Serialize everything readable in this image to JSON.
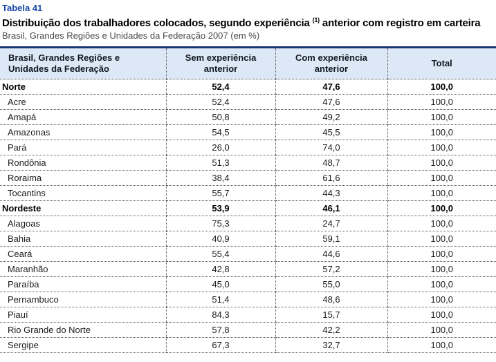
{
  "meta": {
    "table_label": "Tabela 41",
    "title_main": "Distribuição dos trabalhadores colocados, segundo experiência",
    "title_superscript": "(1)",
    "title_rest": " anterior com registro em carteira",
    "subtitle": "Brasil, Grandes Regiões e Unidades da Federação 2007 (em %)"
  },
  "colors": {
    "accent_blue": "#1747a8",
    "header_band_bg": "#dce8f5",
    "top_border_navy": "#17376e",
    "rule_dotted": "#555555"
  },
  "chart_data": {
    "type": "table",
    "title": "Distribuição dos trabalhadores colocados, segundo experiência (1) anterior com registro em carteira",
    "subtitle": "Brasil, Grandes Regiões e Unidades da Federação 2007 (em %)",
    "columns": [
      "Brasil, Grandes Regiões e Unidades da Federação",
      "Sem experiência anterior",
      "Com experiência anterior",
      "Total"
    ],
    "rows": [
      {
        "label": "Norte",
        "region": true,
        "sem": "52,4",
        "com": "47,6",
        "total": "100,0"
      },
      {
        "label": "Acre",
        "region": false,
        "sem": "52,4",
        "com": "47,6",
        "total": "100,0"
      },
      {
        "label": "Amapá",
        "region": false,
        "sem": "50,8",
        "com": "49,2",
        "total": "100,0"
      },
      {
        "label": "Amazonas",
        "region": false,
        "sem": "54,5",
        "com": "45,5",
        "total": "100,0"
      },
      {
        "label": "Pará",
        "region": false,
        "sem": "26,0",
        "com": "74,0",
        "total": "100,0"
      },
      {
        "label": "Rondônia",
        "region": false,
        "sem": "51,3",
        "com": "48,7",
        "total": "100,0"
      },
      {
        "label": "Roraima",
        "region": false,
        "sem": "38,4",
        "com": "61,6",
        "total": "100,0"
      },
      {
        "label": "Tocantins",
        "region": false,
        "sem": "55,7",
        "com": "44,3",
        "total": "100,0"
      },
      {
        "label": "Nordeste",
        "region": true,
        "sem": "53,9",
        "com": "46,1",
        "total": "100,0"
      },
      {
        "label": "Alagoas",
        "region": false,
        "sem": "75,3",
        "com": "24,7",
        "total": "100,0"
      },
      {
        "label": "Bahia",
        "region": false,
        "sem": "40,9",
        "com": "59,1",
        "total": "100,0"
      },
      {
        "label": "Ceará",
        "region": false,
        "sem": "55,4",
        "com": "44,6",
        "total": "100,0"
      },
      {
        "label": "Maranhão",
        "region": false,
        "sem": "42,8",
        "com": "57,2",
        "total": "100,0"
      },
      {
        "label": "Paraíba",
        "region": false,
        "sem": "45,0",
        "com": "55,0",
        "total": "100,0"
      },
      {
        "label": "Pernambuco",
        "region": false,
        "sem": "51,4",
        "com": "48,6",
        "total": "100,0"
      },
      {
        "label": "Piauí",
        "region": false,
        "sem": "84,3",
        "com": "15,7",
        "total": "100,0"
      },
      {
        "label": "Rio Grande do Norte",
        "region": false,
        "sem": "57,8",
        "com": "42,2",
        "total": "100,0"
      },
      {
        "label": "Sergipe",
        "region": false,
        "sem": "67,3",
        "com": "32,7",
        "total": "100,0"
      }
    ]
  }
}
